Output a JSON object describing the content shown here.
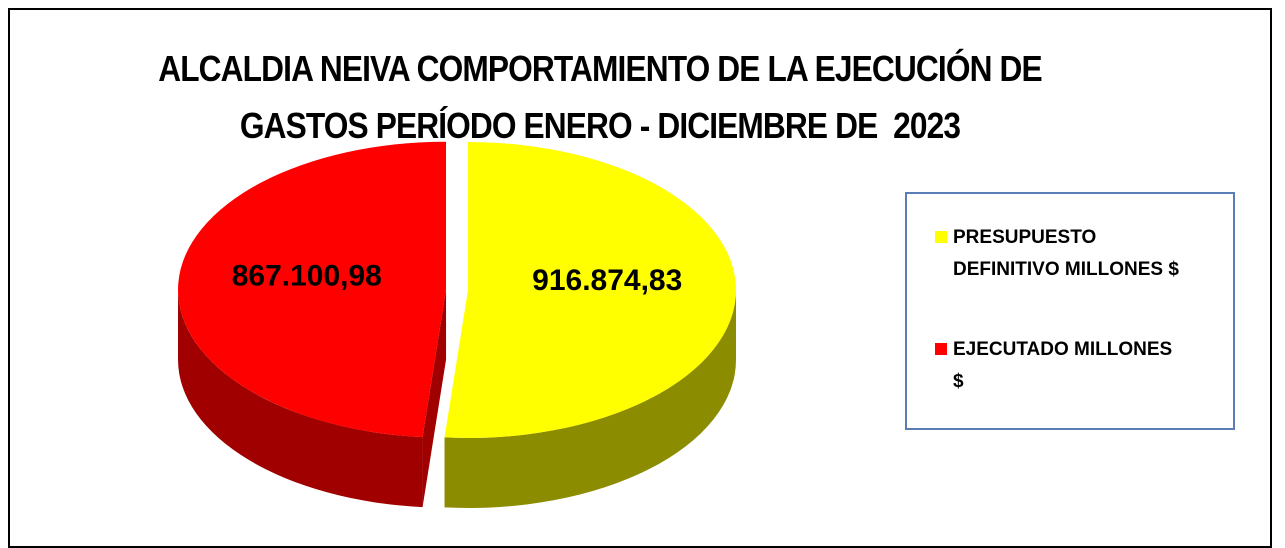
{
  "chart_data": {
    "type": "pie",
    "title": "ALCALDIA NEIVA COMPORTAMIENTO DE LA EJECUCIÓN DE GASTOS PERÍODO ENERO - DICIEMBRE DE  2023",
    "series": [
      {
        "name": "PRESUPUESTO DEFINITIVO MILLONES $",
        "color": "#ffff00",
        "values": [
          916874.83
        ],
        "value_labels": [
          "916.874,83"
        ]
      },
      {
        "name": "EJECUTADO MILLONES $",
        "color": "#ff0000",
        "values": [
          867100.98
        ],
        "value_labels": [
          "867.100,98"
        ]
      }
    ],
    "legend": "right"
  }
}
